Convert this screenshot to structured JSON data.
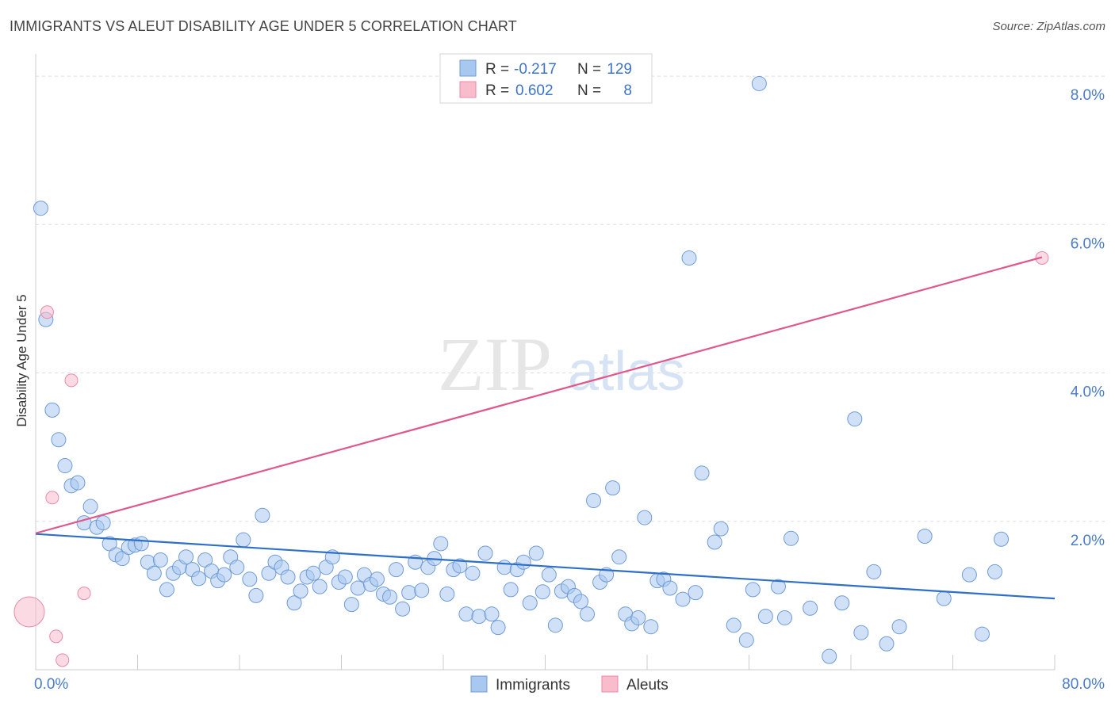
{
  "chart_data": {
    "type": "scatter",
    "title": "IMMIGRANTS VS ALEUT DISABILITY AGE UNDER 5 CORRELATION CHART",
    "source": "Source: ZipAtlas.com",
    "watermark": {
      "zip": "ZIP",
      "atlas": "atlas"
    },
    "xlabel": "",
    "ylabel": "Disability Age Under 5",
    "xlim": [
      0,
      80
    ],
    "ylim": [
      0,
      8.3
    ],
    "x_tick_labels": [
      "0.0%",
      "80.0%"
    ],
    "y_ticks": [
      2,
      4,
      6,
      8
    ],
    "y_tick_labels": [
      "2.0%",
      "4.0%",
      "6.0%",
      "8.0%"
    ],
    "grid": true,
    "legend": {
      "placement": "top-center",
      "entries": [
        {
          "r_label": "R =",
          "r_value": "-0.217",
          "n_label": "N =",
          "n_value": "129"
        },
        {
          "r_label": "R =",
          "r_value": "0.602",
          "n_label": "N =",
          "n_value": "8"
        }
      ]
    },
    "bottom_legend": [
      "Immigrants",
      "Aleuts"
    ],
    "series": [
      {
        "name": "Immigrants",
        "color": "#a9c8f0",
        "stroke": "#6e9bd8",
        "line_color": "#2e6fc7",
        "trend": [
          [
            0,
            1.83
          ],
          [
            80,
            0.96
          ]
        ],
        "points": [
          [
            0.4,
            6.22
          ],
          [
            0.8,
            4.72
          ],
          [
            1.3,
            3.5
          ],
          [
            1.8,
            3.1
          ],
          [
            2.3,
            2.75
          ],
          [
            2.8,
            2.48
          ],
          [
            3.3,
            2.52
          ],
          [
            4.3,
            2.2
          ],
          [
            3.8,
            1.98
          ],
          [
            4.8,
            1.92
          ],
          [
            5.3,
            1.98
          ],
          [
            5.8,
            1.7
          ],
          [
            6.3,
            1.55
          ],
          [
            6.8,
            1.5
          ],
          [
            7.3,
            1.65
          ],
          [
            7.8,
            1.68
          ],
          [
            8.3,
            1.7
          ],
          [
            8.8,
            1.45
          ],
          [
            9.3,
            1.3
          ],
          [
            9.8,
            1.48
          ],
          [
            10.3,
            1.08
          ],
          [
            10.8,
            1.3
          ],
          [
            11.3,
            1.38
          ],
          [
            11.8,
            1.52
          ],
          [
            12.3,
            1.35
          ],
          [
            12.8,
            1.23
          ],
          [
            13.3,
            1.48
          ],
          [
            13.8,
            1.33
          ],
          [
            14.3,
            1.2
          ],
          [
            14.8,
            1.28
          ],
          [
            15.3,
            1.52
          ],
          [
            15.8,
            1.38
          ],
          [
            16.3,
            1.75
          ],
          [
            16.8,
            1.22
          ],
          [
            17.3,
            1.0
          ],
          [
            17.8,
            2.08
          ],
          [
            18.3,
            1.3
          ],
          [
            18.8,
            1.45
          ],
          [
            19.3,
            1.38
          ],
          [
            19.8,
            1.25
          ],
          [
            20.3,
            0.9
          ],
          [
            20.8,
            1.06
          ],
          [
            21.3,
            1.25
          ],
          [
            21.8,
            1.3
          ],
          [
            22.3,
            1.12
          ],
          [
            22.8,
            1.38
          ],
          [
            23.3,
            1.52
          ],
          [
            23.8,
            1.18
          ],
          [
            24.3,
            1.25
          ],
          [
            24.8,
            0.88
          ],
          [
            25.3,
            1.1
          ],
          [
            25.8,
            1.28
          ],
          [
            26.3,
            1.15
          ],
          [
            26.8,
            1.22
          ],
          [
            27.3,
            1.02
          ],
          [
            27.8,
            0.98
          ],
          [
            28.3,
            1.35
          ],
          [
            28.8,
            0.82
          ],
          [
            29.3,
            1.04
          ],
          [
            29.8,
            1.45
          ],
          [
            30.3,
            1.07
          ],
          [
            30.8,
            1.38
          ],
          [
            31.3,
            1.5
          ],
          [
            31.8,
            1.7
          ],
          [
            32.3,
            1.02
          ],
          [
            32.8,
            1.35
          ],
          [
            33.3,
            1.4
          ],
          [
            33.8,
            0.75
          ],
          [
            34.3,
            1.3
          ],
          [
            34.8,
            0.72
          ],
          [
            35.3,
            1.57
          ],
          [
            35.8,
            0.75
          ],
          [
            36.3,
            0.57
          ],
          [
            36.8,
            1.38
          ],
          [
            37.3,
            1.08
          ],
          [
            37.8,
            1.35
          ],
          [
            38.3,
            1.45
          ],
          [
            38.8,
            0.9
          ],
          [
            39.3,
            1.57
          ],
          [
            39.8,
            1.05
          ],
          [
            40.3,
            1.28
          ],
          [
            40.8,
            0.6
          ],
          [
            41.3,
            1.06
          ],
          [
            41.8,
            1.12
          ],
          [
            42.3,
            1.0
          ],
          [
            42.8,
            0.92
          ],
          [
            43.3,
            0.75
          ],
          [
            43.8,
            2.28
          ],
          [
            44.3,
            1.18
          ],
          [
            44.8,
            1.28
          ],
          [
            45.3,
            2.45
          ],
          [
            45.8,
            1.52
          ],
          [
            46.3,
            0.75
          ],
          [
            46.8,
            0.62
          ],
          [
            47.3,
            0.7
          ],
          [
            47.8,
            2.05
          ],
          [
            48.3,
            0.58
          ],
          [
            48.8,
            1.2
          ],
          [
            49.3,
            1.22
          ],
          [
            49.8,
            1.1
          ],
          [
            50.8,
            0.95
          ],
          [
            51.3,
            5.55
          ],
          [
            51.8,
            1.04
          ],
          [
            52.3,
            2.65
          ],
          [
            53.3,
            1.72
          ],
          [
            53.8,
            1.9
          ],
          [
            54.8,
            0.6
          ],
          [
            55.8,
            0.4
          ],
          [
            56.3,
            1.08
          ],
          [
            56.8,
            7.9
          ],
          [
            57.3,
            0.72
          ],
          [
            58.3,
            1.12
          ],
          [
            58.8,
            0.7
          ],
          [
            59.3,
            1.77
          ],
          [
            60.8,
            0.83
          ],
          [
            62.3,
            0.18
          ],
          [
            63.3,
            0.9
          ],
          [
            64.3,
            3.38
          ],
          [
            64.8,
            0.5
          ],
          [
            65.8,
            1.32
          ],
          [
            66.8,
            0.35
          ],
          [
            67.8,
            0.58
          ],
          [
            69.8,
            1.8
          ],
          [
            71.3,
            0.96
          ],
          [
            73.3,
            1.28
          ],
          [
            74.3,
            0.48
          ],
          [
            75.3,
            1.32
          ],
          [
            75.8,
            1.76
          ]
        ]
      },
      {
        "name": "Aleuts",
        "color": "#f8bccd",
        "stroke": "#e88aa8",
        "line_color": "#e0588a",
        "trend": [
          [
            0,
            1.84
          ],
          [
            79,
            5.56
          ]
        ],
        "points": [
          [
            0.9,
            4.82
          ],
          [
            2.8,
            3.9
          ],
          [
            1.3,
            2.32
          ],
          [
            3.8,
            1.03
          ],
          [
            1.6,
            0.45
          ],
          [
            2.1,
            0.13
          ],
          [
            79.0,
            5.55
          ],
          [
            -0.5,
            0.78
          ]
        ]
      }
    ]
  }
}
